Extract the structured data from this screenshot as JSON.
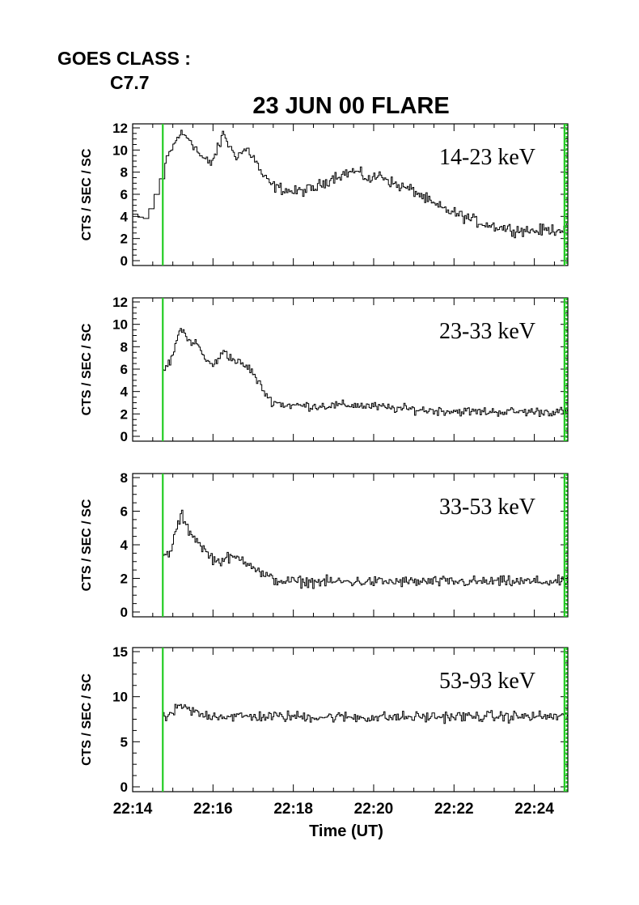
{
  "header": {
    "goes_label": "GOES CLASS :",
    "goes_class": "C7.7",
    "title": "23 JUN 00 FLARE"
  },
  "colors": {
    "trace": "#000000",
    "marker": "#22cc22",
    "axis": "#000000"
  },
  "chart_data": [
    {
      "type": "line",
      "band_label": "14-23 keV",
      "ylabel": "CTS / SEC / SC",
      "ylim": [
        0,
        12
      ],
      "yticks": [
        0,
        2,
        4,
        6,
        8,
        10,
        12
      ],
      "xlim": [
        "22:14",
        "22:24:50"
      ],
      "xticks": [
        "22:14",
        "22:16",
        "22:18",
        "22:20",
        "22:22",
        "22:24"
      ],
      "markers": [
        "22:14:45",
        "22:24:45"
      ],
      "series": [
        {
          "keyframes": [
            [
              "22:14:00",
              4.2
            ],
            [
              "22:14:15",
              3.7
            ],
            [
              "22:14:25",
              4.8
            ],
            [
              "22:14:35",
              6.5
            ],
            [
              "22:14:45",
              8.3
            ],
            [
              "22:14:55",
              9.8
            ],
            [
              "22:15:10",
              11.5
            ],
            [
              "22:15:25",
              11.0
            ],
            [
              "22:15:40",
              9.5
            ],
            [
              "22:15:55",
              8.7
            ],
            [
              "22:16:08",
              10.3
            ],
            [
              "22:16:15",
              11.6
            ],
            [
              "22:16:25",
              10.1
            ],
            [
              "22:16:35",
              9.5
            ],
            [
              "22:16:50",
              10.1
            ],
            [
              "22:17:00",
              9.3
            ],
            [
              "22:17:15",
              7.5
            ],
            [
              "22:17:30",
              6.7
            ],
            [
              "22:18:00",
              6.2
            ],
            [
              "22:18:30",
              6.5
            ],
            [
              "22:19:00",
              7.6
            ],
            [
              "22:19:30",
              8.1
            ],
            [
              "22:19:55",
              7.3
            ],
            [
              "22:20:10",
              7.8
            ],
            [
              "22:20:30",
              6.9
            ],
            [
              "22:21:00",
              6.3
            ],
            [
              "22:21:30",
              5.0
            ],
            [
              "22:22:00",
              4.3
            ],
            [
              "22:22:30",
              3.6
            ],
            [
              "22:23:00",
              3.1
            ],
            [
              "22:23:30",
              2.8
            ],
            [
              "22:24:00",
              2.7
            ],
            [
              "22:24:50",
              2.9
            ]
          ],
          "noise": 0.32
        }
      ]
    },
    {
      "type": "line",
      "band_label": "23-33 keV",
      "ylabel": "CTS / SEC / SC",
      "ylim": [
        0,
        12
      ],
      "yticks": [
        0,
        2,
        4,
        6,
        8,
        10,
        12
      ],
      "xlim": [
        "22:14",
        "22:24:50"
      ],
      "xticks": [
        "22:14",
        "22:16",
        "22:18",
        "22:20",
        "22:22",
        "22:24"
      ],
      "markers": [
        "22:14:45",
        "22:24:45"
      ],
      "series": [
        {
          "keyframes": [
            [
              "22:14:45",
              6.0
            ],
            [
              "22:14:55",
              6.5
            ],
            [
              "22:15:05",
              8.5
            ],
            [
              "22:15:12",
              9.9
            ],
            [
              "22:15:20",
              8.6
            ],
            [
              "22:15:35",
              8.3
            ],
            [
              "22:15:50",
              6.6
            ],
            [
              "22:16:05",
              6.5
            ],
            [
              "22:16:15",
              7.8
            ],
            [
              "22:16:25",
              7.0
            ],
            [
              "22:16:40",
              6.5
            ],
            [
              "22:16:55",
              6.0
            ],
            [
              "22:17:10",
              4.5
            ],
            [
              "22:17:25",
              3.2
            ],
            [
              "22:17:45",
              2.8
            ],
            [
              "22:18:30",
              2.7
            ],
            [
              "22:19:30",
              2.8
            ],
            [
              "22:20:30",
              2.5
            ],
            [
              "22:21:30",
              2.3
            ],
            [
              "22:22:30",
              2.2
            ],
            [
              "22:23:30",
              2.2
            ],
            [
              "22:24:50",
              2.2
            ]
          ],
          "noise": 0.25
        }
      ]
    },
    {
      "type": "line",
      "band_label": "33-53 keV",
      "ylabel": "CTS / SEC / SC",
      "ylim": [
        0,
        8
      ],
      "yticks": [
        0,
        2,
        4,
        6,
        8
      ],
      "xlim": [
        "22:14",
        "22:24:50"
      ],
      "xticks": [
        "22:14",
        "22:16",
        "22:18",
        "22:20",
        "22:22",
        "22:24"
      ],
      "markers": [
        "22:14:45",
        "22:24:45"
      ],
      "series": [
        {
          "keyframes": [
            [
              "22:14:45",
              3.3
            ],
            [
              "22:14:55",
              3.5
            ],
            [
              "22:15:05",
              5.0
            ],
            [
              "22:15:12",
              5.8
            ],
            [
              "22:15:20",
              5.0
            ],
            [
              "22:15:35",
              4.3
            ],
            [
              "22:15:50",
              3.5
            ],
            [
              "22:16:05",
              3.0
            ],
            [
              "22:16:20",
              3.2
            ],
            [
              "22:16:40",
              3.2
            ],
            [
              "22:16:55",
              2.9
            ],
            [
              "22:17:10",
              2.3
            ],
            [
              "22:17:30",
              1.9
            ],
            [
              "22:18:00",
              1.8
            ],
            [
              "22:20:00",
              1.8
            ],
            [
              "22:22:00",
              1.8
            ],
            [
              "22:24:50",
              1.8
            ]
          ],
          "noise": 0.2
        }
      ]
    },
    {
      "type": "line",
      "band_label": "53-93 keV",
      "ylabel": "CTS / SEC / SC",
      "ylim": [
        0,
        15
      ],
      "yticks": [
        0,
        5,
        10,
        15
      ],
      "xlim": [
        "22:14",
        "22:24:50"
      ],
      "xticks": [
        "22:14",
        "22:16",
        "22:18",
        "22:20",
        "22:22",
        "22:24"
      ],
      "xlabel": "Time (UT)",
      "markers": [
        "22:14:45",
        "22:24:45"
      ],
      "series": [
        {
          "keyframes": [
            [
              "22:14:45",
              7.6
            ],
            [
              "22:14:55",
              8.0
            ],
            [
              "22:15:10",
              8.9
            ],
            [
              "22:15:25",
              8.5
            ],
            [
              "22:15:40",
              8.0
            ],
            [
              "22:16:30",
              7.8
            ],
            [
              "22:18:00",
              7.8
            ],
            [
              "22:20:00",
              7.7
            ],
            [
              "22:22:00",
              7.8
            ],
            [
              "22:24:50",
              7.8
            ]
          ],
          "noise": 0.38
        }
      ]
    }
  ]
}
